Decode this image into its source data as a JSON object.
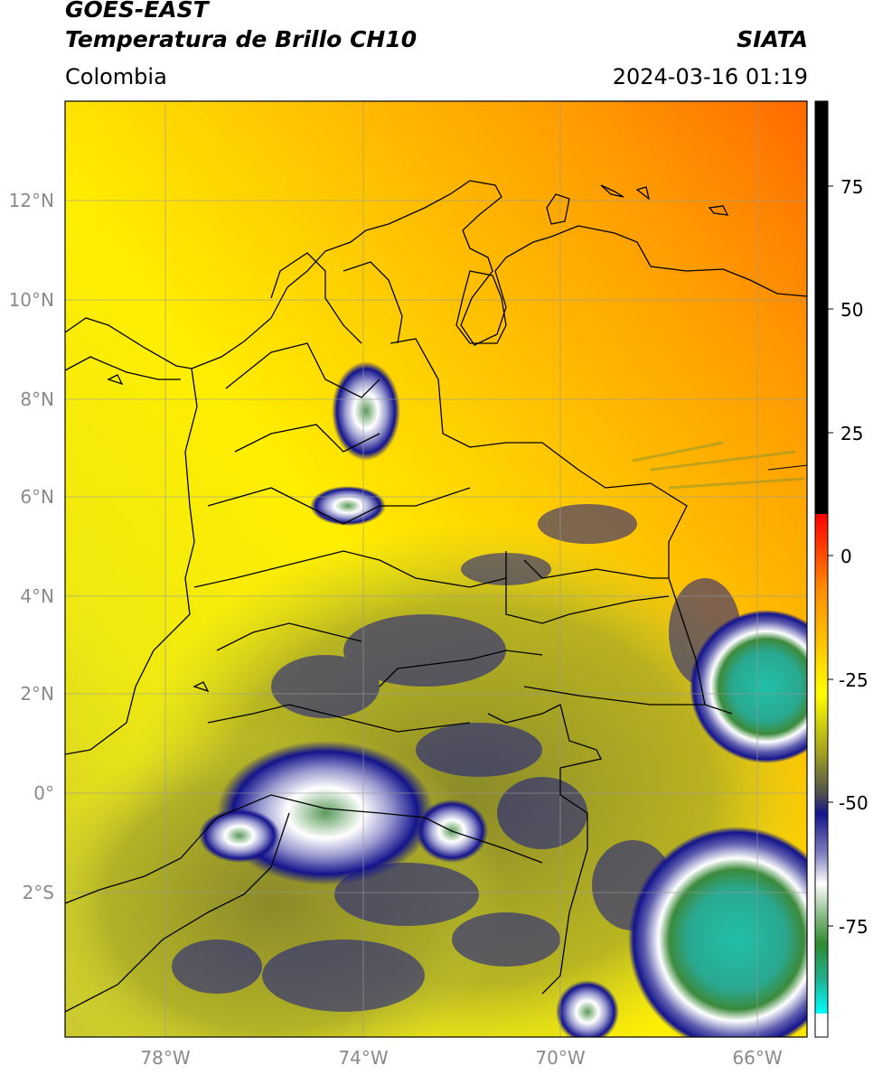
{
  "header": {
    "satellite": "GOES-EAST",
    "product": "Temperatura de Brillo CH10",
    "organization": "SIATA",
    "region": "Colombia",
    "timestamp": "2024-03-16 01:19"
  },
  "map": {
    "lat_labels": [
      "12°N",
      "10°N",
      "8°N",
      "6°N",
      "4°N",
      "2°N",
      "0°",
      "2°S"
    ],
    "lon_labels": [
      "78°W",
      "74°W",
      "70°W",
      "66°W"
    ]
  },
  "colorbar": {
    "ticks": [
      "75",
      "50",
      "25",
      "0",
      "-25",
      "-50",
      "-75"
    ],
    "colors": {
      "black": "#000000",
      "red": "#ff0000",
      "orange": "#ff8c00",
      "yellow": "#ffff00",
      "olive": "#8a8a1e",
      "navy": "#14148c",
      "white": "#ffffff",
      "green": "#2e8b2e",
      "cyan": "#00dcdc"
    }
  }
}
